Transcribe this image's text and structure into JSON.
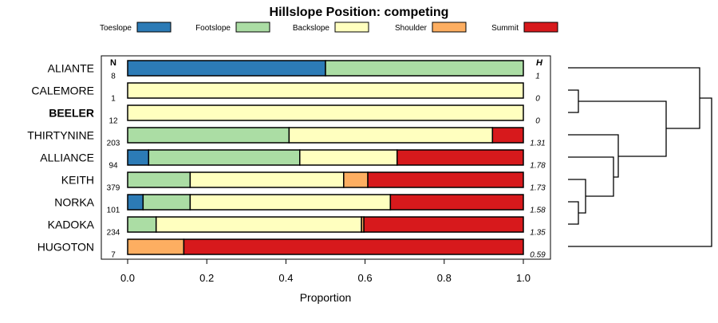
{
  "chart_data": {
    "type": "bar",
    "orientation": "horizontal-stacked",
    "title": "Hillslope Position: competing",
    "xlabel": "Proportion",
    "ylabel": "",
    "xlim": [
      0,
      1
    ],
    "xticks": [
      "0.0",
      "0.2",
      "0.4",
      "0.6",
      "0.8",
      "1.0"
    ],
    "n_header": "N",
    "h_header": "H",
    "legend_placement": "top",
    "categories": [
      "ALIANTE",
      "CALEMORE",
      "BEELER",
      "THIRTYNINE",
      "ALLIANCE",
      "KEITH",
      "NORKA",
      "KADOKA",
      "HUGOTON"
    ],
    "highlighted_category": "BEELER",
    "n": [
      "8",
      "1",
      "12",
      "203",
      "94",
      "379",
      "101",
      "234",
      "7"
    ],
    "h": [
      "1",
      "0",
      "0",
      "1.31",
      "1.78",
      "1.73",
      "1.58",
      "1.35",
      "0.59"
    ],
    "series": [
      {
        "name": "Toeslope",
        "color": "#2C7BB6",
        "values": [
          0.5,
          0,
          0,
          0,
          0.053,
          0,
          0.039,
          0,
          0
        ]
      },
      {
        "name": "Footslope",
        "color": "#ABDDA4",
        "values": [
          0.5,
          0,
          0,
          0.408,
          0.382,
          0.158,
          0.119,
          0.072,
          0
        ]
      },
      {
        "name": "Backslope",
        "color": "#FFFFBF",
        "values": [
          0,
          1,
          1,
          0.514,
          0.246,
          0.388,
          0.506,
          0.519,
          0
        ]
      },
      {
        "name": "Shoulder",
        "color": "#FDAE61",
        "values": [
          0,
          0,
          0,
          0,
          0,
          0.061,
          0,
          0.006,
          0.142
        ]
      },
      {
        "name": "Summit",
        "color": "#D7191C",
        "values": [
          0,
          0,
          0,
          0.078,
          0.319,
          0.393,
          0.336,
          0.403,
          0.858
        ]
      }
    ]
  }
}
